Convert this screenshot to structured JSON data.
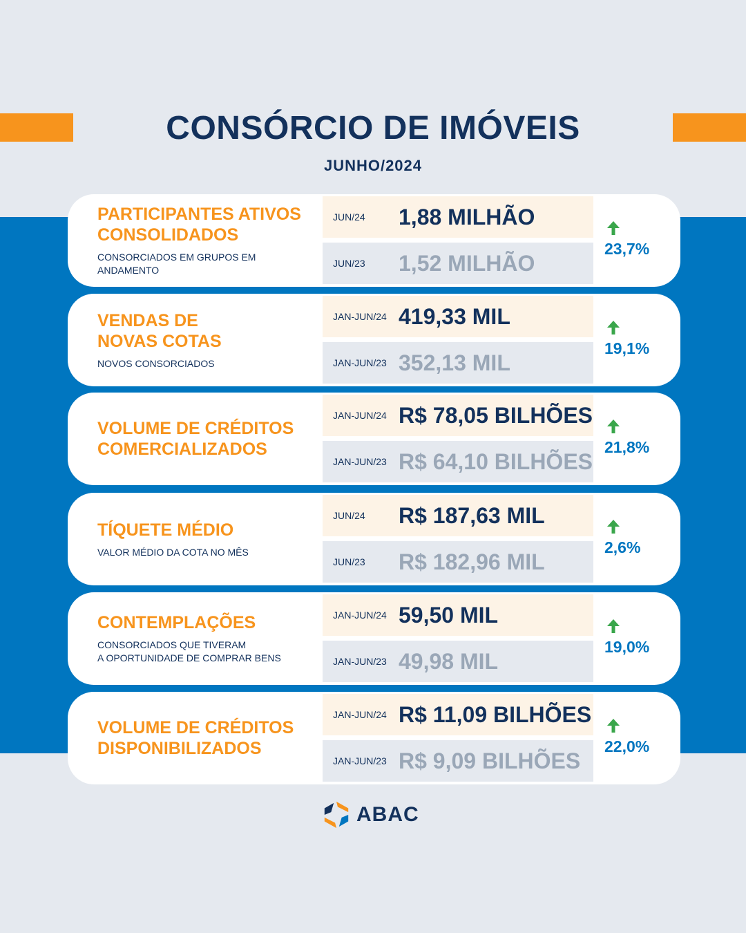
{
  "header": {
    "title": "CONSÓRCIO DE IMÓVEIS",
    "subtitle": "JUNHO/2024"
  },
  "colors": {
    "accent": "#f7941d",
    "navy": "#13315c",
    "blue": "#0076c0",
    "muted": "#9aa7b7",
    "up_arrow": "#3aa64b"
  },
  "cards": [
    {
      "title": "PARTICIPANTES ATIVOS\nCONSOLIDADOS",
      "subtitle": "CONSORCIADOS EM GRUPOS EM ANDAMENTO",
      "current": {
        "period": "JUN/24",
        "value": "1,88 MILHÃO"
      },
      "previous": {
        "period": "JUN/23",
        "value": "1,52 MILHÃO"
      },
      "growth": "23,7%",
      "trend_icon": "arrow-up-icon"
    },
    {
      "title": "VENDAS DE\nNOVAS COTAS",
      "subtitle": "NOVOS CONSORCIADOS",
      "current": {
        "period": "JAN-JUN/24",
        "value": "419,33 MIL"
      },
      "previous": {
        "period": "JAN-JUN/23",
        "value": "352,13 MIL"
      },
      "growth": "19,1%",
      "trend_icon": "arrow-up-icon"
    },
    {
      "title": "VOLUME DE CRÉDITOS\nCOMERCIALIZADOS",
      "subtitle": "",
      "current": {
        "period": "JAN-JUN/24",
        "value": "R$ 78,05 BILHÕES"
      },
      "previous": {
        "period": "JAN-JUN/23",
        "value": "R$ 64,10 BILHÕES"
      },
      "growth": "21,8%",
      "trend_icon": "arrow-up-icon"
    },
    {
      "title": "TÍQUETE MÉDIO",
      "subtitle": "VALOR MÉDIO DA COTA NO MÊS",
      "current": {
        "period": "JUN/24",
        "value": "R$ 187,63 MIL"
      },
      "previous": {
        "period": "JUN/23",
        "value": "R$ 182,96 MIL"
      },
      "growth": "2,6%",
      "trend_icon": "arrow-up-icon"
    },
    {
      "title": "CONTEMPLAÇÕES",
      "subtitle": "CONSORCIADOS QUE TIVERAM\nA OPORTUNIDADE DE COMPRAR BENS",
      "current": {
        "period": "JAN-JUN/24",
        "value": "59,50 MIL"
      },
      "previous": {
        "period": "JAN-JUN/23",
        "value": "49,98 MIL"
      },
      "growth": "19,0%",
      "trend_icon": "arrow-up-icon"
    },
    {
      "title": "VOLUME DE CRÉDITOS\nDISPONIBILIZADOS",
      "subtitle": "",
      "current": {
        "period": "JAN-JUN/24",
        "value": "R$ 11,09 BILHÕES"
      },
      "previous": {
        "period": "JAN-JUN/23",
        "value": "R$ 9,09 BILHÕES"
      },
      "growth": "22,0%",
      "trend_icon": "arrow-up-icon"
    }
  ],
  "footer": {
    "logo_text": "ABAC",
    "logo_icon": "abac-logo-icon"
  }
}
